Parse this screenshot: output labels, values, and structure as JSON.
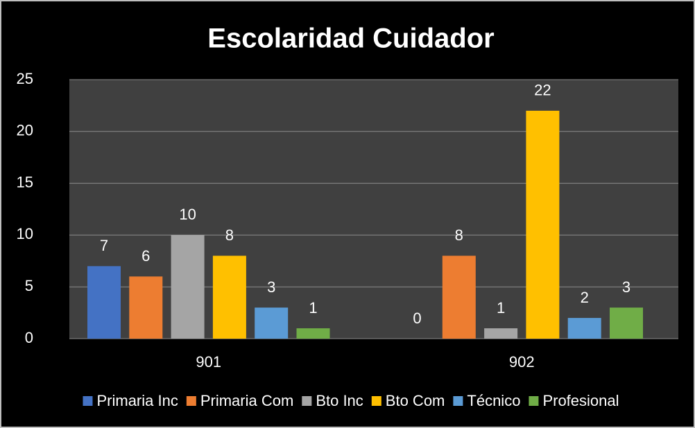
{
  "chart_data": {
    "type": "bar",
    "title": "Escolaridad Cuidador",
    "categories": [
      "901",
      "902"
    ],
    "series": [
      {
        "name": "Primaria Inc",
        "color": "#4472c4",
        "values": [
          7,
          0
        ]
      },
      {
        "name": "Primaria Com",
        "color": "#ed7d31",
        "values": [
          6,
          8
        ]
      },
      {
        "name": "Bto Inc",
        "color": "#a5a5a5",
        "values": [
          10,
          1
        ]
      },
      {
        "name": "Bto Com",
        "color": "#ffc000",
        "values": [
          8,
          22
        ]
      },
      {
        "name": "Técnico",
        "color": "#5b9bd5",
        "values": [
          3,
          2
        ]
      },
      {
        "name": "Profesional",
        "color": "#70ad47",
        "values": [
          1,
          3
        ]
      }
    ],
    "ylim": [
      0,
      25
    ],
    "yticks": [
      0,
      5,
      10,
      15,
      20,
      25
    ],
    "grid": true,
    "legend": "bottom"
  }
}
